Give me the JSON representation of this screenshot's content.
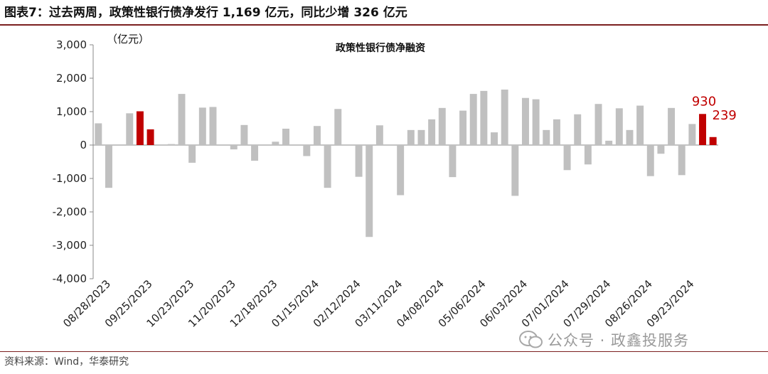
{
  "figure": {
    "title": "图表7：过去两周，政策性银行债净发行 1,169 亿元，同比少增 326 亿元",
    "source": "资料来源：Wind，华泰研究",
    "watermark": "公众号 · 政鑫投服务"
  },
  "colors": {
    "bar_default": "#c0c0c0",
    "bar_highlight": "#c00000",
    "label_highlight": "#c00000",
    "rule": "#7b1f1f"
  },
  "chart_data": {
    "type": "bar",
    "title": "政策性银行债净融资",
    "ylabel": "（亿元）",
    "ylim": [
      -4000,
      3000
    ],
    "yticks": [
      3000,
      2000,
      1000,
      0,
      -1000,
      -2000,
      -3000,
      -4000
    ],
    "ytick_labels": [
      "3,000",
      "2,000",
      "1,000",
      "0",
      "-1,000",
      "-2,000",
      "-3,000",
      "-4,000"
    ],
    "xtick_labels": [
      "08/28/2023",
      "09/25/2023",
      "10/23/2023",
      "11/20/2023",
      "12/18/2023",
      "01/15/2024",
      "02/12/2024",
      "03/11/2024",
      "04/08/2024",
      "05/06/2024",
      "06/03/2024",
      "07/01/2024",
      "07/29/2024",
      "08/26/2024",
      "09/23/2024"
    ],
    "grid": false,
    "series": [
      {
        "values": [
          650,
          -1280,
          0,
          950,
          1010,
          470,
          0,
          30,
          1530,
          -530,
          1120,
          1140,
          0,
          -130,
          600,
          -470,
          0,
          100,
          490,
          0,
          -330,
          570,
          -1280,
          1080,
          0,
          -950,
          -2750,
          590,
          0,
          -1500,
          450,
          450,
          770,
          1110,
          -960,
          1030,
          1530,
          1620,
          380,
          1660,
          -1520,
          1410,
          1370,
          450,
          770,
          -750,
          920,
          -580,
          1230,
          130,
          1100,
          450,
          1180,
          -930,
          -260,
          1110,
          -900,
          630,
          930,
          239
        ],
        "highlight_indices": [
          4,
          5,
          58,
          59
        ]
      }
    ],
    "annotations": [
      {
        "index": 58,
        "text": "930"
      },
      {
        "index": 59,
        "text": "239"
      }
    ]
  }
}
